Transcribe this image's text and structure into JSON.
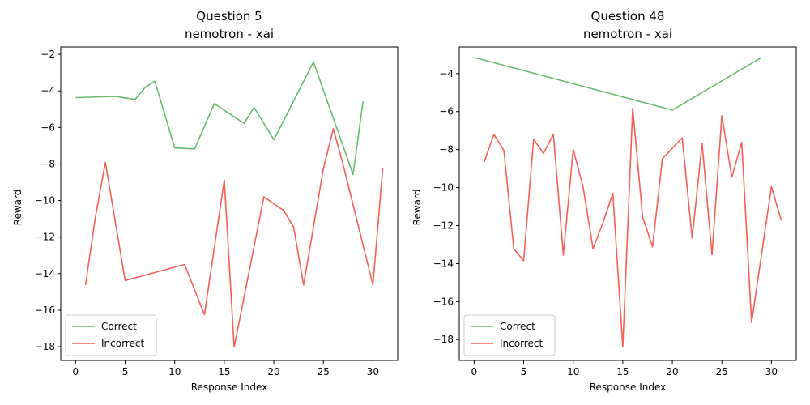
{
  "chart_data": [
    {
      "type": "line",
      "title": "Question 5",
      "subtitle": "nemotron - xai",
      "xlabel": "Response Index",
      "ylabel": "Reward",
      "xlim": [
        -1.5,
        32.5
      ],
      "ylim": [
        -18.75,
        -1.6
      ],
      "xticks": [
        0,
        5,
        10,
        15,
        20,
        25,
        30
      ],
      "yticks": [
        -18,
        -16,
        -14,
        -12,
        -10,
        -8,
        -6,
        -4,
        -2
      ],
      "legend_position": "lower-left",
      "grid": false,
      "series": [
        {
          "name": "Correct",
          "color": "#4caf50",
          "x": [
            0,
            4,
            6,
            7,
            8,
            10,
            12,
            14,
            17,
            18,
            20,
            24,
            28,
            29
          ],
          "y": [
            -4.37,
            -4.3,
            -4.47,
            -3.82,
            -3.47,
            -7.12,
            -7.18,
            -4.7,
            -5.78,
            -4.9,
            -6.68,
            -2.42,
            -8.57,
            -4.58
          ]
        },
        {
          "name": "Incorrect",
          "color": "#f44336",
          "x": [
            1,
            2,
            3,
            5,
            11,
            13,
            15,
            16,
            19,
            21,
            22,
            23,
            25,
            26,
            27,
            30,
            31
          ],
          "y": [
            -14.62,
            -10.9,
            -7.92,
            -14.38,
            -13.5,
            -16.25,
            -8.87,
            -18.02,
            -9.8,
            -10.55,
            -11.45,
            -14.62,
            -8.27,
            -6.07,
            -8.05,
            -14.62,
            -8.2
          ]
        }
      ]
    },
    {
      "type": "line",
      "title": "Question 48",
      "subtitle": "nemotron - xai",
      "xlabel": "Response Index",
      "ylabel": "Reward",
      "xlim": [
        -1.5,
        32.5
      ],
      "ylim": [
        -19.1,
        -2.6
      ],
      "xticks": [
        0,
        5,
        10,
        15,
        20,
        25,
        30
      ],
      "yticks": [
        -18,
        -16,
        -14,
        -12,
        -10,
        -8,
        -6,
        -4
      ],
      "legend_position": "lower-left",
      "grid": false,
      "series": [
        {
          "name": "Correct",
          "color": "#4caf50",
          "x": [
            0,
            20,
            29
          ],
          "y": [
            -3.15,
            -5.92,
            -3.15
          ]
        },
        {
          "name": "Incorrect",
          "color": "#f44336",
          "x": [
            1,
            2,
            3,
            4,
            5,
            6,
            7,
            8,
            9,
            10,
            11,
            12,
            13,
            14,
            15,
            16,
            17,
            18,
            19,
            21,
            22,
            23,
            24,
            25,
            26,
            27,
            28,
            30,
            31
          ],
          "y": [
            -8.67,
            -7.2,
            -8.05,
            -13.22,
            -13.85,
            -7.45,
            -8.2,
            -7.2,
            -13.55,
            -7.98,
            -9.98,
            -13.22,
            -11.85,
            -10.3,
            -18.38,
            -5.82,
            -11.55,
            -13.12,
            -8.48,
            -7.38,
            -12.66,
            -7.68,
            -13.54,
            -6.22,
            -9.45,
            -7.62,
            -17.1,
            -9.95,
            -11.74
          ]
        }
      ]
    }
  ]
}
